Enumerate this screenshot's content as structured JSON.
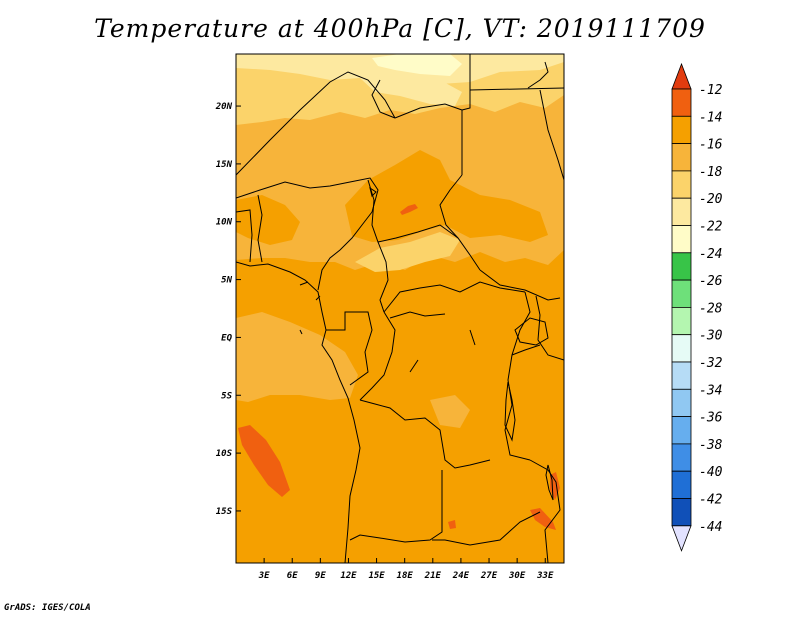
{
  "title": "Temperature at 400hPa [C], VT: 2019111709",
  "footer": "GrADS: IGES/COLA",
  "map": {
    "lon_range": [
      0,
      35
    ],
    "lat_range": [
      -19.5,
      24.5
    ],
    "x_ticks": [
      {
        "lon": 3,
        "label": "3E"
      },
      {
        "lon": 6,
        "label": "6E"
      },
      {
        "lon": 9,
        "label": "9E"
      },
      {
        "lon": 12,
        "label": "12E"
      },
      {
        "lon": 15,
        "label": "15E"
      },
      {
        "lon": 18,
        "label": "18E"
      },
      {
        "lon": 21,
        "label": "21E"
      },
      {
        "lon": 24,
        "label": "24E"
      },
      {
        "lon": 27,
        "label": "27E"
      },
      {
        "lon": 30,
        "label": "30E"
      },
      {
        "lon": 33,
        "label": "33E"
      }
    ],
    "y_ticks": [
      {
        "lat": 20,
        "label": "20N"
      },
      {
        "lat": 15,
        "label": "15N"
      },
      {
        "lat": 10,
        "label": "10N"
      },
      {
        "lat": 5,
        "label": "5N"
      },
      {
        "lat": 0,
        "label": "EQ"
      },
      {
        "lat": -5,
        "label": "5S"
      },
      {
        "lat": -10,
        "label": "10S"
      },
      {
        "lat": -15,
        "label": "15S"
      }
    ]
  },
  "colorbar": {
    "levels": [
      {
        "label": "-12",
        "color": "#f06010"
      },
      {
        "label": "-14",
        "color": "#f5a000"
      },
      {
        "label": "-16",
        "color": "#f7b43a"
      },
      {
        "label": "-18",
        "color": "#fbd36a"
      },
      {
        "label": "-20",
        "color": "#fde9a0"
      },
      {
        "label": "-22",
        "color": "#fffcc8"
      },
      {
        "label": "-24",
        "color": "#38c448"
      },
      {
        "label": "-26",
        "color": "#6ee07a"
      },
      {
        "label": "-28",
        "color": "#b4f6b0"
      },
      {
        "label": "-30",
        "color": "#e6fbf6"
      },
      {
        "label": "-32",
        "color": "#b6dcf6"
      },
      {
        "label": "-34",
        "color": "#90c8f2"
      },
      {
        "label": "-36",
        "color": "#66aeee"
      },
      {
        "label": "-38",
        "color": "#3f8ee6"
      },
      {
        "label": "-40",
        "color": "#1f6fd6"
      },
      {
        "label": "-42",
        "color": "#1050b8"
      },
      {
        "label": "-44",
        "color": "#0a1e6e"
      }
    ],
    "top_arrow_color": "#e23c10",
    "bottom_arrow_color": "#e2e2ff"
  }
}
